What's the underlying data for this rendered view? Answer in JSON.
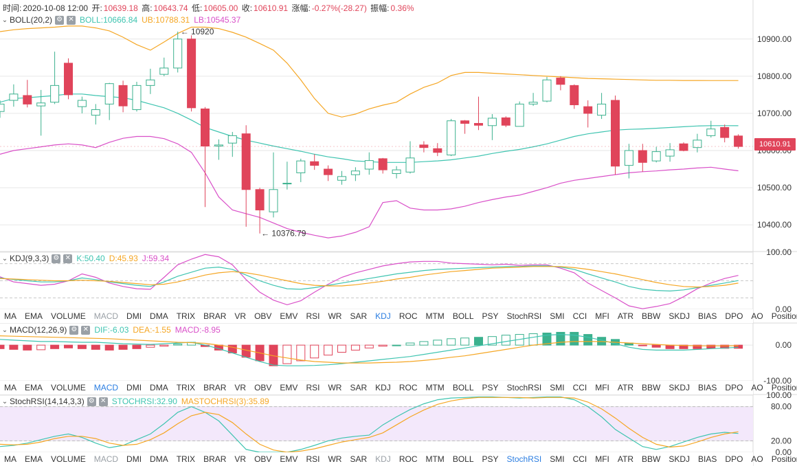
{
  "header": {
    "time_label": "时间:",
    "time_value": "2020-10-08 12:00",
    "open_label": "开:",
    "open_value": "10639.18",
    "high_label": "高:",
    "high_value": "10643.74",
    "low_label": "低:",
    "low_value": "10605.00",
    "close_label": "收:",
    "close_value": "10610.91",
    "change_label": "涨幅:",
    "change_value": "-0.27%(-28.27)",
    "amp_label": "振幅:",
    "amp_value": "0.36%"
  },
  "panels": {
    "boll": {
      "name": "BOLL(20,2)",
      "v1": "BOLL:10666.84",
      "v2": "UB:10788.31",
      "v3": "LB:10545.37"
    },
    "kdj": {
      "name": "KDJ(9,3,3)",
      "v1": "K:50.40",
      "v2": "D:45.93",
      "v3": "J:59.34"
    },
    "macd": {
      "name": "MACD(12,26,9)",
      "v1": "DIF:-6.03",
      "v2": "DEA:-1.55",
      "v3": "MACD:-8.95"
    },
    "stoch": {
      "name": "StochRSI(14,14,3,3)",
      "v1": "STOCHRSI:32.90",
      "v2": "MASTOCHRSI(3):35.89"
    }
  },
  "indicator_tabs": [
    "MA",
    "EMA",
    "VOLUME",
    "MACD",
    "DMI",
    "DMA",
    "TRIX",
    "BRAR",
    "VR",
    "OBV",
    "EMV",
    "RSI",
    "WR",
    "SAR",
    "KDJ",
    "ROC",
    "MTM",
    "BOLL",
    "PSY",
    "StochRSI",
    "SMI",
    "CCI",
    "MFI",
    "ATR",
    "BBW",
    "SKDJ",
    "BIAS",
    "DPO",
    "AO",
    "Position"
  ],
  "tab_rows": [
    {
      "dim": [
        "MACD"
      ],
      "active": [
        "KDJ"
      ]
    },
    {
      "dim": [],
      "active": [
        "MACD"
      ]
    },
    {
      "dim": [
        "MACD",
        "KDJ"
      ],
      "active": [
        "StochRSI"
      ]
    }
  ],
  "last_price": "10610.91",
  "annotations": {
    "high": "10920",
    "low": "10376.79"
  },
  "colors": {
    "up": "#3bb18e",
    "down": "#e0445a",
    "boll": "#3ec4b0",
    "ub": "#f5a623",
    "lb": "#d94fc8",
    "k": "#3ec4b0",
    "d": "#f5a623",
    "j": "#d94fc8",
    "band": "#f3e8fb",
    "grid": "#e6e6e6",
    "active": "#2a7de1"
  },
  "chart_data": [
    {
      "type": "candlestick",
      "title": "BOLL(20,2)",
      "ylim": [
        10330,
        11005
      ],
      "yticks": [
        10400,
        10500,
        10600,
        10700,
        10800,
        10900
      ],
      "ytick_labels": [
        "10400.00",
        "10500.00",
        "10600.00",
        "10700.00",
        "10800.00",
        "10900.00"
      ],
      "candles": [
        [
          10705,
          10725,
          10688,
          10735
        ],
        [
          10735,
          10752,
          10718,
          10778
        ],
        [
          10748,
          10725,
          10716,
          10790
        ],
        [
          10720,
          10728,
          10640,
          10763
        ],
        [
          10730,
          10775,
          10725,
          10866
        ],
        [
          10835,
          10750,
          10738,
          10848
        ],
        [
          10718,
          10735,
          10700,
          10745
        ],
        [
          10695,
          10710,
          10670,
          10725
        ],
        [
          10725,
          10780,
          10682,
          10782
        ],
        [
          10775,
          10720,
          10703,
          10788
        ],
        [
          10710,
          10775,
          10705,
          10785
        ],
        [
          10775,
          10790,
          10752,
          10820
        ],
        [
          10805,
          10822,
          10800,
          10850
        ],
        [
          10822,
          10900,
          10810,
          10920
        ],
        [
          10900,
          10715,
          10705,
          10910
        ],
        [
          10712,
          10612,
          10448,
          10717
        ],
        [
          10612,
          10615,
          10575,
          10630
        ],
        [
          10620,
          10640,
          10583,
          10650
        ],
        [
          10645,
          10495,
          10395,
          10668
        ],
        [
          10495,
          10440,
          10376.79,
          10500
        ],
        [
          10435,
          10495,
          10420,
          10595
        ],
        [
          10512,
          10512,
          10495,
          10570
        ],
        [
          10540,
          10572,
          10515,
          10578
        ],
        [
          10570,
          10560,
          10548,
          10590
        ],
        [
          10550,
          10535,
          10518,
          10560
        ],
        [
          10520,
          10530,
          10508,
          10545
        ],
        [
          10535,
          10545,
          10518,
          10555
        ],
        [
          10550,
          10573,
          10535,
          10595
        ],
        [
          10578,
          10548,
          10538,
          10580
        ],
        [
          10538,
          10548,
          10525,
          10558
        ],
        [
          10542,
          10580,
          10538,
          10625
        ],
        [
          10615,
          10608,
          10595,
          10625
        ],
        [
          10605,
          10595,
          10585,
          10620
        ],
        [
          10588,
          10680,
          10585,
          10685
        ],
        [
          10680,
          10673,
          10645,
          10682
        ],
        [
          10673,
          10668,
          10655,
          10745
        ],
        [
          10667,
          10687,
          10628,
          10698
        ],
        [
          10688,
          10668,
          10663,
          10692
        ],
        [
          10665,
          10725,
          10665,
          10732
        ],
        [
          10725,
          10730,
          10720,
          10755
        ],
        [
          10733,
          10790,
          10730,
          10798
        ],
        [
          10795,
          10778,
          10762,
          10800
        ],
        [
          10775,
          10723,
          10712,
          10778
        ],
        [
          10718,
          10700,
          10662,
          10735
        ],
        [
          10695,
          10725,
          10685,
          10755
        ],
        [
          10735,
          10558,
          10535,
          10748
        ],
        [
          10560,
          10600,
          10525,
          10618
        ],
        [
          10600,
          10568,
          10543,
          10618
        ],
        [
          10572,
          10597,
          10568,
          10610
        ],
        [
          10585,
          10602,
          10570,
          10620
        ],
        [
          10618,
          10600,
          10598,
          10622
        ],
        [
          10608,
          10628,
          10595,
          10645
        ],
        [
          10640,
          10658,
          10635,
          10680
        ],
        [
          10662,
          10635,
          10622,
          10670
        ],
        [
          10639.18,
          10610.91,
          10605,
          10643.74
        ]
      ],
      "boll_mid": [
        10730,
        10740,
        10742,
        10745,
        10748,
        10752,
        10752,
        10748,
        10745,
        10742,
        10735,
        10725,
        10715,
        10700,
        10682,
        10662,
        10650,
        10638,
        10628,
        10620,
        10612,
        10605,
        10598,
        10590,
        10583,
        10578,
        10572,
        10570,
        10568,
        10568,
        10568,
        10570,
        10572,
        10575,
        10580,
        10585,
        10592,
        10598,
        10603,
        10610,
        10618,
        10628,
        10638,
        10645,
        10650,
        10655,
        10657,
        10658,
        10660,
        10662,
        10664,
        10666,
        10667,
        10667,
        10666.84
      ],
      "boll_ub": [
        10920,
        10925,
        10928,
        10930,
        10932,
        10935,
        10935,
        10930,
        10922,
        10905,
        10885,
        10870,
        10892,
        10915,
        10932,
        10932,
        10928,
        10918,
        10905,
        10888,
        10870,
        10835,
        10790,
        10740,
        10700,
        10690,
        10698,
        10712,
        10722,
        10730,
        10752,
        10770,
        10782,
        10802,
        10810,
        10810,
        10808,
        10806,
        10804,
        10802,
        10800,
        10798,
        10796,
        10794,
        10793,
        10792,
        10791,
        10790,
        10789,
        10789,
        10788.5,
        10788.4,
        10788.3,
        10788.31,
        10788.31
      ],
      "boll_lb": [
        10590,
        10600,
        10605,
        10610,
        10615,
        10618,
        10615,
        10608,
        10622,
        10633,
        10638,
        10638,
        10632,
        10618,
        10595,
        10540,
        10475,
        10440,
        10430,
        10420,
        10405,
        10390,
        10380,
        10372,
        10365,
        10370,
        10380,
        10395,
        10460,
        10465,
        10445,
        10440,
        10440,
        10443,
        10450,
        10460,
        10468,
        10475,
        10480,
        10490,
        10500,
        10512,
        10520,
        10525,
        10530,
        10535,
        10540,
        10543,
        10545,
        10548,
        10550,
        10553,
        10555,
        10550,
        10545.37
      ]
    },
    {
      "type": "line",
      "title": "KDJ(9,3,3)",
      "ylim": [
        0,
        100
      ],
      "yticks": [
        0,
        100
      ],
      "ytick_labels": [
        "0.00",
        "100.00"
      ],
      "series": [
        {
          "name": "K",
          "values": [
            55,
            52,
            50,
            48,
            48,
            50,
            55,
            52,
            48,
            45,
            42,
            40,
            48,
            58,
            65,
            72,
            74,
            70,
            60,
            50,
            42,
            36,
            35,
            38,
            42,
            46,
            50,
            54,
            58,
            62,
            65,
            68,
            70,
            71,
            72,
            73,
            74,
            75,
            75,
            76,
            76,
            74,
            70,
            62,
            55,
            48,
            40,
            35,
            33,
            32,
            34,
            38,
            42,
            46,
            50.4
          ]
        },
        {
          "name": "D",
          "values": [
            54,
            53,
            52,
            51,
            50,
            50,
            51,
            50,
            49,
            47,
            45,
            43,
            44,
            48,
            54,
            60,
            64,
            66,
            64,
            60,
            55,
            50,
            45,
            42,
            41,
            41,
            43,
            46,
            49,
            53,
            56,
            60,
            63,
            66,
            68,
            70,
            72,
            73,
            74,
            75,
            75,
            75,
            73,
            70,
            66,
            62,
            57,
            52,
            47,
            43,
            40,
            39,
            40,
            42,
            45.93
          ]
        },
        {
          "name": "J",
          "values": [
            57,
            48,
            45,
            42,
            44,
            50,
            62,
            56,
            46,
            40,
            36,
            35,
            56,
            78,
            88,
            96,
            92,
            78,
            52,
            30,
            16,
            8,
            15,
            30,
            44,
            56,
            64,
            70,
            76,
            80,
            83,
            84,
            84,
            81,
            80,
            79,
            78,
            79,
            77,
            78,
            78,
            72,
            64,
            46,
            33,
            20,
            6,
            1,
            5,
            10,
            22,
            36,
            46,
            54,
            59.34
          ]
        }
      ]
    },
    {
      "type": "bar",
      "title": "MACD(12,26,9)",
      "ylim": [
        -100,
        60
      ],
      "yticks": [
        -100,
        0
      ],
      "ytick_labels": [
        "-100.00",
        "0.00"
      ],
      "histogram": [
        -10,
        -12,
        -14,
        -13,
        -10,
        -8,
        -10,
        -12,
        -14,
        -12,
        -10,
        -6,
        -3,
        3,
        8,
        -4,
        -14,
        -22,
        -34,
        -44,
        -58,
        -52,
        -44,
        -36,
        -28,
        -20,
        -14,
        -8,
        -3,
        0,
        6,
        10,
        14,
        18,
        20,
        22,
        24,
        28,
        30,
        32,
        34,
        36,
        36,
        30,
        22,
        16,
        6,
        -2,
        -6,
        -10,
        -10,
        -10,
        -9,
        -9,
        -8.95
      ],
      "hist_filled": [
        1,
        1,
        1,
        0,
        1,
        1,
        1,
        1,
        1,
        1,
        1,
        0,
        0,
        0,
        0,
        1,
        1,
        1,
        1,
        1,
        1,
        0,
        0,
        0,
        0,
        0,
        0,
        0,
        0,
        0,
        0,
        0,
        0,
        0,
        0,
        1,
        0,
        0,
        0,
        0,
        1,
        1,
        1,
        1,
        1,
        1,
        1,
        1,
        1,
        1,
        1,
        1,
        1,
        1,
        1
      ],
      "series": [
        {
          "name": "DIF",
          "values": [
            16,
            14,
            12,
            10,
            10,
            9,
            8,
            8,
            6,
            4,
            3,
            2,
            4,
            6,
            8,
            0,
            -10,
            -22,
            -34,
            -46,
            -56,
            -58,
            -58,
            -57,
            -55,
            -52,
            -48,
            -44,
            -40,
            -36,
            -32,
            -26,
            -20,
            -14,
            -8,
            -2,
            4,
            10,
            16,
            22,
            28,
            30,
            28,
            22,
            14,
            4,
            -6,
            -12,
            -14,
            -14,
            -14,
            -12,
            -10,
            -8,
            -6.03
          ]
        },
        {
          "name": "DEA",
          "values": [
            26,
            25,
            24,
            23,
            22,
            21,
            20,
            19,
            18,
            16,
            14,
            12,
            10,
            8,
            7,
            5,
            0,
            -6,
            -14,
            -22,
            -30,
            -36,
            -42,
            -46,
            -48,
            -50,
            -50,
            -50,
            -49,
            -48,
            -46,
            -43,
            -39,
            -34,
            -30,
            -24,
            -18,
            -12,
            -6,
            0,
            4,
            8,
            10,
            10,
            10,
            8,
            6,
            4,
            2,
            0,
            -1,
            -2,
            -2,
            -2,
            -1.55
          ]
        }
      ]
    },
    {
      "type": "area",
      "title": "StochRSI(14,14,3,3)",
      "ylim": [
        0,
        100
      ],
      "yticks": [
        0,
        20,
        80,
        100
      ],
      "ytick_labels": [
        "0.00",
        "20.00",
        "80.00",
        "100.00"
      ],
      "series": [
        {
          "name": "STOCHRSI",
          "values": [
            10,
            12,
            16,
            22,
            28,
            32,
            26,
            16,
            8,
            12,
            22,
            32,
            50,
            70,
            80,
            70,
            55,
            30,
            5,
            0,
            0,
            0,
            5,
            12,
            20,
            25,
            28,
            30,
            48,
            62,
            75,
            85,
            92,
            95,
            96,
            97,
            97,
            96,
            95,
            96,
            97,
            97,
            92,
            80,
            62,
            40,
            25,
            10,
            5,
            10,
            18,
            26,
            32,
            35,
            32.9
          ]
        },
        {
          "name": "MASTOCHRSI(3)",
          "values": [
            14,
            13,
            14,
            18,
            24,
            28,
            28,
            24,
            16,
            12,
            14,
            22,
            34,
            50,
            64,
            70,
            66,
            52,
            32,
            14,
            4,
            0,
            2,
            6,
            12,
            18,
            22,
            26,
            34,
            48,
            62,
            74,
            84,
            90,
            94,
            96,
            96,
            96,
            96,
            95,
            96,
            96,
            95,
            88,
            76,
            60,
            42,
            26,
            14,
            9,
            11,
            18,
            26,
            32,
            35.89
          ]
        }
      ]
    }
  ]
}
